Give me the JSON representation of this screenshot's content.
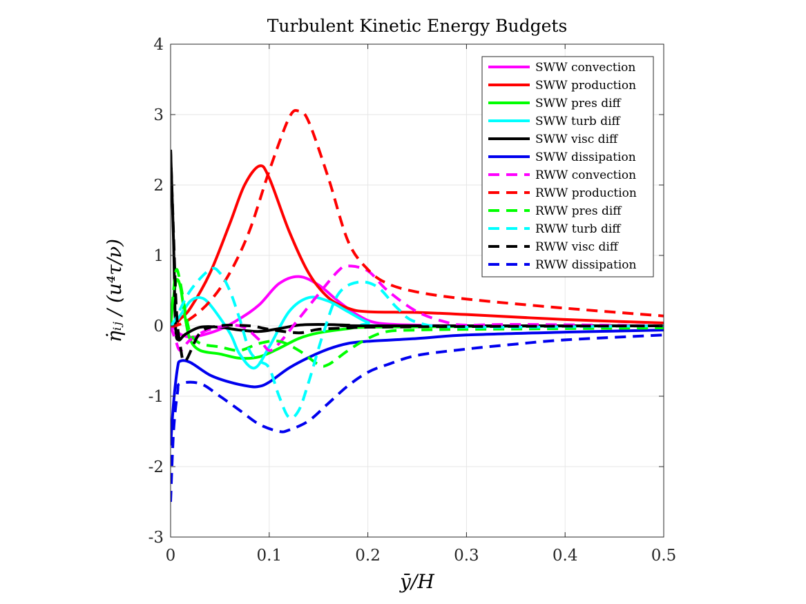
{
  "chart_data": {
    "type": "line",
    "title": "Turbulent Kinetic Energy Budgets",
    "xlabel": "ȳ/H",
    "ylabel": "η̇ᵢⱼ / (u⁴τ/ν)",
    "xlim": [
      0,
      0.5
    ],
    "ylim": [
      -3,
      4
    ],
    "xticks": [
      0,
      0.1,
      0.2,
      0.3,
      0.4,
      0.5
    ],
    "xtick_labels": [
      "0",
      "0.1",
      "0.2",
      "0.3",
      "0.4",
      "0.5"
    ],
    "yticks": [
      -3,
      -2,
      -1,
      0,
      1,
      2,
      3,
      4
    ],
    "ytick_labels": [
      "-3",
      "-2",
      "-1",
      "0",
      "1",
      "2",
      "3",
      "4"
    ],
    "grid": true,
    "legend_position": "top-right",
    "series": [
      {
        "name": "SWW convection",
        "color": "#ff00ff",
        "dash": "solid",
        "points": [
          [
            0,
            0
          ],
          [
            0.005,
            -0.05
          ],
          [
            0.01,
            -0.12
          ],
          [
            0.02,
            -0.16
          ],
          [
            0.03,
            -0.14
          ],
          [
            0.05,
            -0.05
          ],
          [
            0.07,
            0.1
          ],
          [
            0.09,
            0.3
          ],
          [
            0.11,
            0.6
          ],
          [
            0.13,
            0.7
          ],
          [
            0.15,
            0.58
          ],
          [
            0.17,
            0.35
          ],
          [
            0.19,
            0.15
          ],
          [
            0.21,
            0.04
          ],
          [
            0.25,
            0.01
          ],
          [
            0.3,
            0.0
          ],
          [
            0.5,
            0.0
          ]
        ]
      },
      {
        "name": "SWW production",
        "color": "#ff0000",
        "dash": "solid",
        "points": [
          [
            0,
            0
          ],
          [
            0.005,
            0.02
          ],
          [
            0.01,
            0.1
          ],
          [
            0.02,
            0.25
          ],
          [
            0.04,
            0.75
          ],
          [
            0.06,
            1.45
          ],
          [
            0.075,
            2.0
          ],
          [
            0.09,
            2.27
          ],
          [
            0.1,
            2.1
          ],
          [
            0.12,
            1.35
          ],
          [
            0.14,
            0.75
          ],
          [
            0.16,
            0.4
          ],
          [
            0.18,
            0.25
          ],
          [
            0.2,
            0.2
          ],
          [
            0.25,
            0.19
          ],
          [
            0.3,
            0.16
          ],
          [
            0.4,
            0.09
          ],
          [
            0.5,
            0.04
          ]
        ]
      },
      {
        "name": "SWW pres diff",
        "color": "#00ff00",
        "dash": "solid",
        "points": [
          [
            0,
            0
          ],
          [
            0.003,
            0.4
          ],
          [
            0.006,
            0.65
          ],
          [
            0.01,
            0.55
          ],
          [
            0.015,
            0.1
          ],
          [
            0.02,
            -0.2
          ],
          [
            0.03,
            -0.35
          ],
          [
            0.05,
            -0.4
          ],
          [
            0.07,
            -0.46
          ],
          [
            0.09,
            -0.44
          ],
          [
            0.11,
            -0.32
          ],
          [
            0.13,
            -0.18
          ],
          [
            0.15,
            -0.1
          ],
          [
            0.18,
            -0.04
          ],
          [
            0.2,
            -0.02
          ],
          [
            0.3,
            -0.01
          ],
          [
            0.5,
            0.0
          ]
        ]
      },
      {
        "name": "SWW turb diff",
        "color": "#00ffff",
        "dash": "solid",
        "points": [
          [
            0,
            0
          ],
          [
            0.005,
            0.05
          ],
          [
            0.01,
            0.15
          ],
          [
            0.02,
            0.35
          ],
          [
            0.03,
            0.4
          ],
          [
            0.04,
            0.3
          ],
          [
            0.06,
            -0.1
          ],
          [
            0.07,
            -0.4
          ],
          [
            0.085,
            -0.6
          ],
          [
            0.1,
            -0.3
          ],
          [
            0.12,
            0.2
          ],
          [
            0.14,
            0.4
          ],
          [
            0.16,
            0.35
          ],
          [
            0.18,
            0.2
          ],
          [
            0.2,
            0.05
          ],
          [
            0.22,
            0.0
          ],
          [
            0.5,
            0.0
          ]
        ]
      },
      {
        "name": "SWW visc diff",
        "color": "#000000",
        "dash": "solid",
        "points": [
          [
            0,
            2.5
          ],
          [
            0.003,
            1.2
          ],
          [
            0.005,
            0.0
          ],
          [
            0.008,
            -0.2
          ],
          [
            0.015,
            -0.12
          ],
          [
            0.03,
            -0.02
          ],
          [
            0.05,
            -0.02
          ],
          [
            0.07,
            -0.06
          ],
          [
            0.09,
            -0.08
          ],
          [
            0.11,
            -0.04
          ],
          [
            0.13,
            0.01
          ],
          [
            0.15,
            0.02
          ],
          [
            0.18,
            0.01
          ],
          [
            0.2,
            0.0
          ],
          [
            0.5,
            0.0
          ]
        ]
      },
      {
        "name": "SWW dissipation",
        "color": "#0000ee",
        "dash": "solid",
        "points": [
          [
            0,
            -1.7
          ],
          [
            0.003,
            -1.1
          ],
          [
            0.007,
            -0.6
          ],
          [
            0.01,
            -0.5
          ],
          [
            0.02,
            -0.52
          ],
          [
            0.04,
            -0.7
          ],
          [
            0.06,
            -0.8
          ],
          [
            0.08,
            -0.86
          ],
          [
            0.09,
            -0.86
          ],
          [
            0.1,
            -0.8
          ],
          [
            0.12,
            -0.6
          ],
          [
            0.14,
            -0.45
          ],
          [
            0.16,
            -0.33
          ],
          [
            0.18,
            -0.25
          ],
          [
            0.2,
            -0.22
          ],
          [
            0.25,
            -0.18
          ],
          [
            0.3,
            -0.13
          ],
          [
            0.4,
            -0.09
          ],
          [
            0.5,
            -0.06
          ]
        ]
      },
      {
        "name": "RWW convection",
        "color": "#ff00ff",
        "dash": "dashed",
        "points": [
          [
            0,
            0
          ],
          [
            0.005,
            -0.2
          ],
          [
            0.01,
            -0.35
          ],
          [
            0.02,
            -0.2
          ],
          [
            0.04,
            -0.05
          ],
          [
            0.07,
            0.0
          ],
          [
            0.09,
            -0.2
          ],
          [
            0.1,
            -0.35
          ],
          [
            0.11,
            -0.25
          ],
          [
            0.13,
            0.1
          ],
          [
            0.15,
            0.45
          ],
          [
            0.17,
            0.78
          ],
          [
            0.18,
            0.85
          ],
          [
            0.2,
            0.78
          ],
          [
            0.22,
            0.5
          ],
          [
            0.25,
            0.2
          ],
          [
            0.28,
            0.05
          ],
          [
            0.3,
            0.01
          ],
          [
            0.35,
            0.02
          ],
          [
            0.5,
            0.0
          ]
        ]
      },
      {
        "name": "RWW production",
        "color": "#ff0000",
        "dash": "dashed",
        "points": [
          [
            0,
            0
          ],
          [
            0.005,
            0.0
          ],
          [
            0.02,
            0.1
          ],
          [
            0.04,
            0.35
          ],
          [
            0.06,
            0.75
          ],
          [
            0.08,
            1.35
          ],
          [
            0.1,
            2.2
          ],
          [
            0.12,
            2.95
          ],
          [
            0.13,
            3.05
          ],
          [
            0.14,
            2.9
          ],
          [
            0.16,
            2.1
          ],
          [
            0.18,
            1.2
          ],
          [
            0.2,
            0.8
          ],
          [
            0.22,
            0.6
          ],
          [
            0.25,
            0.48
          ],
          [
            0.3,
            0.38
          ],
          [
            0.4,
            0.25
          ],
          [
            0.5,
            0.14
          ]
        ]
      },
      {
        "name": "RWW pres diff",
        "color": "#00ff00",
        "dash": "dashed",
        "points": [
          [
            0,
            0
          ],
          [
            0.003,
            0.5
          ],
          [
            0.006,
            0.8
          ],
          [
            0.01,
            0.6
          ],
          [
            0.015,
            0.2
          ],
          [
            0.02,
            -0.1
          ],
          [
            0.03,
            -0.25
          ],
          [
            0.05,
            -0.3
          ],
          [
            0.07,
            -0.35
          ],
          [
            0.09,
            -0.25
          ],
          [
            0.11,
            -0.22
          ],
          [
            0.13,
            -0.35
          ],
          [
            0.15,
            -0.55
          ],
          [
            0.16,
            -0.55
          ],
          [
            0.18,
            -0.35
          ],
          [
            0.2,
            -0.18
          ],
          [
            0.22,
            -0.08
          ],
          [
            0.25,
            -0.06
          ],
          [
            0.3,
            -0.05
          ],
          [
            0.5,
            -0.03
          ]
        ]
      },
      {
        "name": "RWW turb diff",
        "color": "#00ffff",
        "dash": "dashed",
        "points": [
          [
            0,
            0
          ],
          [
            0.005,
            0.1
          ],
          [
            0.02,
            0.5
          ],
          [
            0.04,
            0.8
          ],
          [
            0.05,
            0.75
          ],
          [
            0.06,
            0.5
          ],
          [
            0.07,
            0.1
          ],
          [
            0.08,
            -0.35
          ],
          [
            0.09,
            -0.5
          ],
          [
            0.1,
            -0.6
          ],
          [
            0.11,
            -1.0
          ],
          [
            0.12,
            -1.3
          ],
          [
            0.13,
            -1.2
          ],
          [
            0.14,
            -0.8
          ],
          [
            0.155,
            -0.1
          ],
          [
            0.17,
            0.45
          ],
          [
            0.19,
            0.62
          ],
          [
            0.21,
            0.55
          ],
          [
            0.23,
            0.25
          ],
          [
            0.25,
            0.05
          ],
          [
            0.3,
            -0.02
          ],
          [
            0.5,
            0.0
          ]
        ]
      },
      {
        "name": "RWW visc diff",
        "color": "#000000",
        "dash": "dashed",
        "points": [
          [
            0,
            2.5
          ],
          [
            0.003,
            1.3
          ],
          [
            0.006,
            0.2
          ],
          [
            0.01,
            -0.3
          ],
          [
            0.015,
            -0.5
          ],
          [
            0.03,
            -0.1
          ],
          [
            0.05,
            0.0
          ],
          [
            0.08,
            0.0
          ],
          [
            0.1,
            -0.05
          ],
          [
            0.13,
            -0.1
          ],
          [
            0.15,
            -0.05
          ],
          [
            0.18,
            -0.03
          ],
          [
            0.2,
            -0.02
          ],
          [
            0.3,
            -0.01
          ],
          [
            0.5,
            0.0
          ]
        ]
      },
      {
        "name": "RWW dissipation",
        "color": "#0000ee",
        "dash": "dashed",
        "points": [
          [
            0,
            -2.5
          ],
          [
            0.003,
            -1.5
          ],
          [
            0.007,
            -0.95
          ],
          [
            0.01,
            -0.82
          ],
          [
            0.03,
            -0.82
          ],
          [
            0.05,
            -1.0
          ],
          [
            0.07,
            -1.2
          ],
          [
            0.09,
            -1.4
          ],
          [
            0.11,
            -1.5
          ],
          [
            0.12,
            -1.48
          ],
          [
            0.14,
            -1.35
          ],
          [
            0.16,
            -1.1
          ],
          [
            0.18,
            -0.85
          ],
          [
            0.2,
            -0.66
          ],
          [
            0.22,
            -0.55
          ],
          [
            0.25,
            -0.42
          ],
          [
            0.3,
            -0.33
          ],
          [
            0.35,
            -0.26
          ],
          [
            0.4,
            -0.2
          ],
          [
            0.5,
            -0.13
          ]
        ]
      }
    ]
  }
}
